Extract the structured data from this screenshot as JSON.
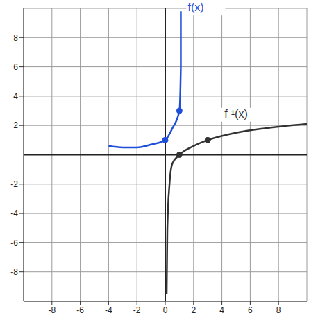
{
  "chart_data": {
    "type": "line",
    "xlim": [
      -10,
      10
    ],
    "ylim": [
      -10,
      10
    ],
    "xticks": [
      -8,
      -6,
      -4,
      -2,
      0,
      2,
      4,
      6,
      8
    ],
    "yticks": [
      -8,
      -6,
      -4,
      -2,
      2,
      4,
      6,
      8
    ],
    "grid": true,
    "series": [
      {
        "name": "f(x)",
        "color": "#1f4fd8",
        "x": [
          -4,
          -3,
          -2,
          -1,
          0,
          0.5,
          1,
          1.1,
          1.1
        ],
        "values": [
          0.6,
          0.5,
          0.5,
          0.7,
          1,
          1.8,
          3,
          6,
          9.8
        ],
        "points": [
          [
            0,
            1
          ],
          [
            1,
            3
          ]
        ],
        "marker": "dot"
      },
      {
        "name": "f⁻¹(x)",
        "color": "#333333",
        "x": [
          0.1,
          0.15,
          0.3,
          0.5,
          1,
          2,
          3,
          5,
          7,
          10
        ],
        "values": [
          -9.5,
          -5,
          -2,
          -0.6,
          0,
          0.6,
          1,
          1.5,
          1.8,
          2.1
        ],
        "points": [
          [
            1,
            0
          ],
          [
            3,
            1
          ]
        ],
        "marker": "dot"
      }
    ]
  }
}
